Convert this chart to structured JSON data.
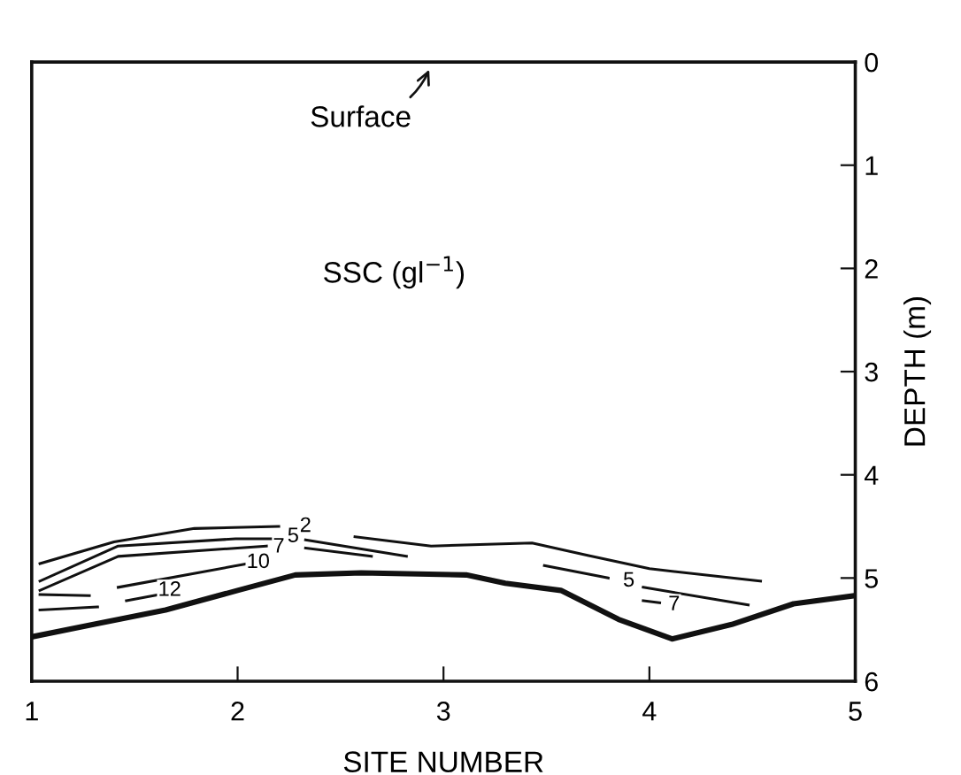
{
  "chart_data": {
    "type": "line",
    "xlabel": "SITE NUMBER",
    "ylabel": "DEPTH (m)",
    "xlim": [
      1,
      5
    ],
    "xticks": [
      1,
      2,
      3,
      4,
      5
    ],
    "ylim": [
      6,
      0
    ],
    "yticks": [
      0,
      1,
      2,
      3,
      4,
      5,
      6
    ],
    "grid": false,
    "legend": false,
    "marker": "none",
    "line_style": "solid",
    "series": [
      {
        "color": "#111111",
        "x": [
          1.0,
          1.3,
          1.65,
          2.0,
          2.28,
          2.6,
          3.11,
          3.3,
          3.57,
          3.85,
          4.11,
          4.4,
          4.7,
          5.0
        ],
        "values": [
          5.57,
          5.45,
          5.31,
          5.12,
          4.97,
          4.95,
          4.97,
          5.05,
          5.12,
          5.4,
          5.59,
          5.45,
          5.25,
          5.17
        ]
      },
      {
        "color": "#111111",
        "x": [
          1.04,
          1.4,
          1.79,
          2.2,
          2.4,
          2.57,
          2.94,
          3.43,
          3.7,
          4.0,
          4.54
        ],
        "values": [
          4.86,
          4.65,
          4.52,
          4.5,
          null,
          4.6,
          4.69,
          4.66,
          4.78,
          4.91,
          5.03
        ]
      },
      {
        "color": "#111111",
        "x": [
          1.04,
          1.42,
          1.99,
          2.2,
          2.25,
          2.33,
          2.82,
          2.9,
          3.49,
          3.8,
          3.86,
          3.97,
          4.48
        ],
        "values": [
          5.03,
          4.69,
          4.62,
          4.62,
          null,
          4.63,
          4.79,
          null,
          4.88,
          5.0,
          null,
          5.09,
          5.26
        ]
      },
      {
        "color": "#111111",
        "x": [
          1.04,
          1.42,
          2.14,
          2.2,
          2.33,
          2.65,
          2.8,
          3.97,
          4.05
        ],
        "values": [
          5.12,
          4.79,
          4.69,
          null,
          4.71,
          4.79,
          null,
          5.22,
          5.24
        ]
      },
      {
        "color": "#111111",
        "x": [
          1.04,
          1.28,
          1.35,
          1.42,
          2.05
        ],
        "values": [
          5.16,
          5.17,
          null,
          5.09,
          4.86
        ]
      },
      {
        "color": "#111111",
        "x": [
          1.04,
          1.32,
          1.4,
          1.46,
          1.62
        ],
        "values": [
          5.31,
          5.28,
          null,
          5.22,
          5.16
        ]
      }
    ],
    "annotations": [
      "Surface",
      "SSC (gl$^{−1}$)",
      {
        "text": "2",
        "x": 2.33,
        "y": 4.5
      },
      {
        "text": "5",
        "x": 2.27,
        "y": 4.6
      },
      {
        "text": "7",
        "x": 2.2,
        "y": 4.7
      },
      {
        "text": "10",
        "x": 2.1,
        "y": 4.85
      },
      {
        "text": "12",
        "x": 1.67,
        "y": 5.12
      },
      {
        "text": "5",
        "x": 3.9,
        "y": 5.03
      },
      {
        "text": "7",
        "x": 4.12,
        "y": 5.26
      }
    ]
  }
}
